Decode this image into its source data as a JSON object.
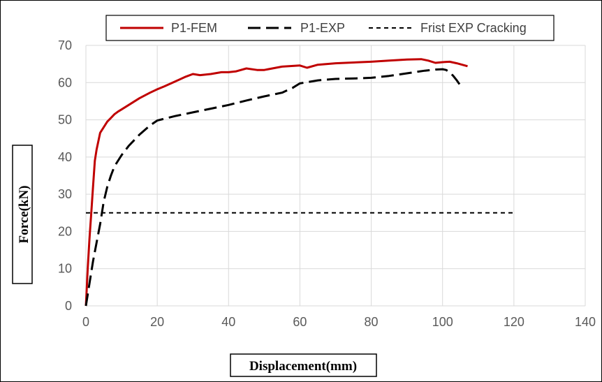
{
  "chart_data": {
    "type": "line",
    "xlabel": "Displacement(mm)",
    "ylabel": "Force(kN)",
    "xlim": [
      0,
      140
    ],
    "ylim": [
      0,
      70
    ],
    "xticks": [
      0,
      20,
      40,
      60,
      80,
      100,
      120,
      140
    ],
    "yticks": [
      0,
      10,
      20,
      30,
      40,
      50,
      60,
      70
    ],
    "grid": "on",
    "legend_position": "top",
    "series": [
      {
        "name": "P1-FEM",
        "color": "#c00000",
        "style": "solid",
        "x": [
          0,
          0.5,
          1,
          1.5,
          2,
          2.5,
          3,
          4,
          5,
          6,
          7,
          8,
          9,
          10,
          12,
          15,
          18,
          20,
          22,
          25,
          28,
          30,
          32,
          35,
          38,
          40,
          42,
          45,
          48,
          50,
          55,
          60,
          62,
          65,
          70,
          75,
          80,
          85,
          90,
          94,
          96,
          98,
          100,
          102,
          104,
          107
        ],
        "y": [
          0,
          10,
          18,
          25,
          32,
          39,
          42,
          46.5,
          48,
          49.5,
          50.5,
          51.5,
          52.2,
          52.8,
          54,
          55.8,
          57.3,
          58.2,
          59,
          60.3,
          61.6,
          62.3,
          62,
          62.3,
          62.8,
          62.8,
          63,
          63.8,
          63.4,
          63.4,
          64.3,
          64.6,
          64,
          64.8,
          65.2,
          65.4,
          65.6,
          65.9,
          66.2,
          66.3,
          65.9,
          65.3,
          65.5,
          65.6,
          65.2,
          64.4
        ]
      },
      {
        "name": "P1-EXP",
        "color": "#000000",
        "style": "dashed",
        "x": [
          0,
          1,
          2,
          3,
          4,
          5,
          6,
          7,
          8,
          10,
          12,
          15,
          18,
          20,
          25,
          30,
          35,
          40,
          45,
          50,
          55,
          58,
          60,
          65,
          70,
          75,
          80,
          85,
          90,
          95,
          98,
          100,
          101,
          102,
          103,
          104,
          105
        ],
        "y": [
          0,
          6,
          12,
          17,
          22,
          28,
          32,
          35,
          37.5,
          40.5,
          43,
          46,
          48.5,
          49.8,
          51,
          52,
          53,
          54,
          55.2,
          56.3,
          57.3,
          58.6,
          59.8,
          60.6,
          61,
          61.1,
          61.3,
          61.8,
          62.5,
          63.2,
          63.5,
          63.6,
          63.4,
          62.8,
          61.8,
          60.6,
          59.2
        ]
      },
      {
        "name": "Frist EXP Cracking",
        "color": "#000000",
        "style": "dotted",
        "x": [
          0,
          120
        ],
        "y": [
          25,
          25
        ]
      }
    ]
  }
}
